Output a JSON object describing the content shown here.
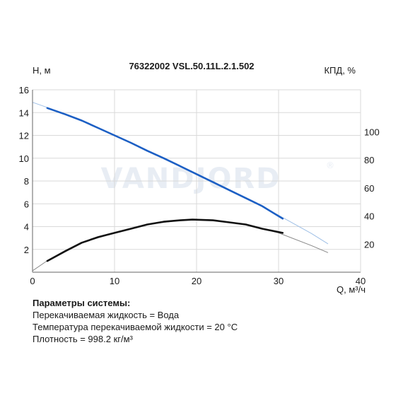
{
  "chart_data": {
    "type": "line",
    "title": "76322002 VSL.50.11L.2.1.502",
    "xlabel": "Q, м³/ч",
    "ylabel": "H, м",
    "y2label": "КПД, %",
    "xlim": [
      0,
      40
    ],
    "ylim": [
      0,
      16
    ],
    "y2lim": [
      0,
      130
    ],
    "xticks": [
      0,
      10,
      20,
      30,
      40
    ],
    "yticks": [
      2,
      4,
      6,
      8,
      10,
      12,
      14,
      16
    ],
    "y2ticks": [
      20,
      40,
      60,
      80,
      100
    ],
    "grid": true,
    "watermark": "VANDJORD",
    "series": [
      {
        "role": "head-extended",
        "color": "#9ebfe6",
        "x": [
          0,
          2,
          6,
          10,
          14,
          18,
          22,
          26,
          30,
          34,
          36
        ],
        "y": [
          14.9,
          14.4,
          13.3,
          12.0,
          10.65,
          9.3,
          7.9,
          6.5,
          5.0,
          3.4,
          2.5
        ]
      },
      {
        "role": "head-operating",
        "color": "#1c5fc4",
        "x": [
          1.8,
          4,
          6,
          8,
          10,
          12,
          14,
          16,
          18,
          20,
          22,
          24,
          26,
          28,
          30.5
        ],
        "y": [
          14.4,
          13.85,
          13.3,
          12.65,
          12.0,
          11.35,
          10.65,
          10.0,
          9.3,
          8.6,
          7.9,
          7.2,
          6.5,
          5.8,
          4.7
        ]
      },
      {
        "role": "efficiency-extended",
        "color": "#888888",
        "axis": "y2",
        "x": [
          0,
          2,
          6,
          10,
          14,
          18,
          19.5,
          22,
          26,
          30,
          34,
          36
        ],
        "y": [
          1,
          9,
          21,
          28,
          34,
          37,
          37.5,
          37,
          34,
          28,
          19,
          14
        ]
      },
      {
        "role": "efficiency-operating",
        "color": "#111111",
        "axis": "y2",
        "x": [
          1.8,
          4,
          6,
          8,
          10,
          12,
          14,
          16,
          18,
          19.5,
          22,
          24,
          26,
          28,
          30.5
        ],
        "y": [
          8,
          15,
          21,
          25,
          28,
          31,
          34,
          36,
          37,
          37.5,
          37,
          35.5,
          34,
          31,
          28
        ]
      }
    ]
  },
  "params": {
    "heading": "Параметры системы:",
    "lines": [
      "Перекачиваемая жидкость = Вода",
      "Температура перекачиваемой жидкости = 20 °C",
      "Плотность = 998.2 кг/м³"
    ]
  }
}
